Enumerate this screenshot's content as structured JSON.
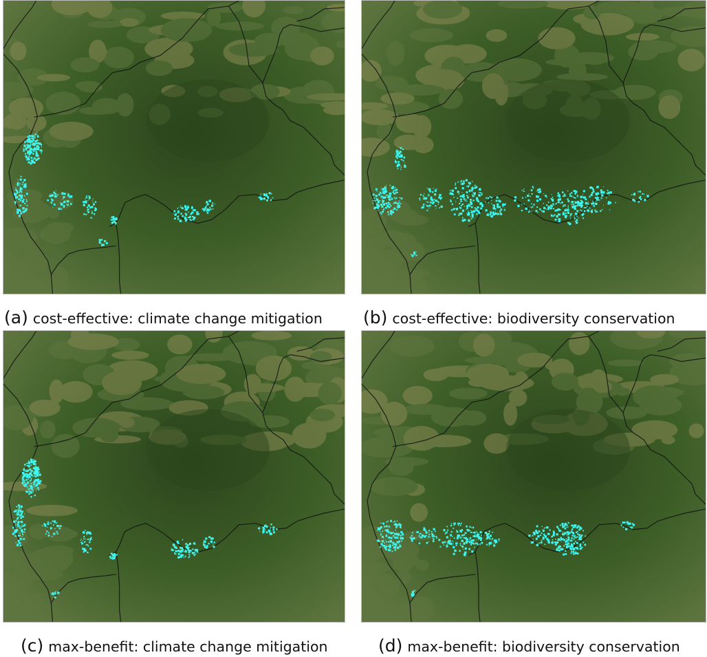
{
  "figure": {
    "panels": [
      {
        "label": "(a)",
        "caption": "cost-effective: climate change mitigation",
        "scenario": "cost-effective",
        "objective": "climate change mitigation"
      },
      {
        "label": "(b)",
        "caption": "cost-effective: biodiversity conservation",
        "scenario": "cost-effective",
        "objective": "biodiversity conservation"
      },
      {
        "label": "(c)",
        "caption": "max-benefit: climate change mitigation",
        "scenario": "max-benefit",
        "objective": "climate change mitigation"
      },
      {
        "label": "(d)",
        "caption": "max-benefit: biodiversity conservation",
        "scenario": "max-benefit",
        "objective": "biodiversity conservation"
      }
    ]
  },
  "colors": {
    "forest_dark": "#2b451c",
    "forest_mid": "#3d5e27",
    "savanna": "#5f7540",
    "savanna_light": "#8a8a55",
    "highlight": "#3ff5f0",
    "border_line": "#111111"
  }
}
